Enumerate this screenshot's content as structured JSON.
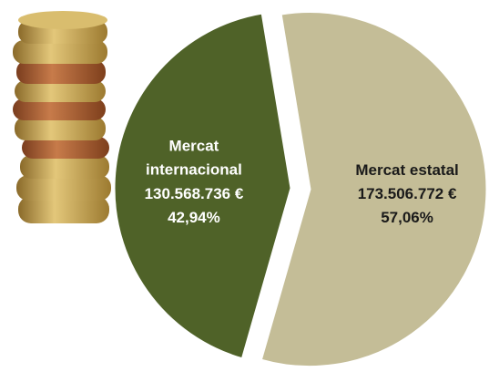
{
  "chart_data": {
    "type": "pie",
    "categories": [
      "Mercat internacional",
      "Mercat estatal"
    ],
    "values": [
      42.94,
      57.06
    ],
    "value_labels": [
      "42,94%",
      "57,06%"
    ],
    "amounts": [
      130568736,
      173506772
    ],
    "amount_labels": [
      "130.568.736 €",
      "173.506.772 €"
    ],
    "colors": [
      "#4f6228",
      "#c4bd97"
    ]
  }
}
